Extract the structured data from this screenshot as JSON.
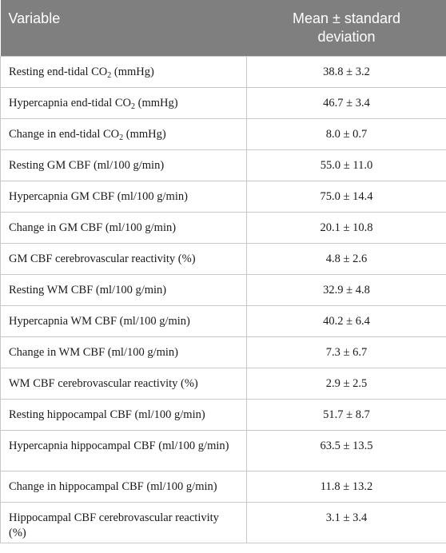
{
  "header": {
    "variable_label": "Variable",
    "stat_label": "Mean ± standard deviation"
  },
  "rows": [
    {
      "pre": "Resting end-tidal CO",
      "sub": "2",
      "post": " (mmHg)",
      "value": "38.8 ± 3.2"
    },
    {
      "pre": "Hypercapnia end-tidal CO",
      "sub": "2",
      "post": " (mmHg)",
      "value": "46.7 ± 3.4"
    },
    {
      "pre": "Change in end-tidal CO",
      "sub": "2",
      "post": " (mmHg)",
      "value": "8.0 ± 0.7"
    },
    {
      "pre": "Resting GM CBF (ml/100 g/min)",
      "value": "55.0 ± 11.0"
    },
    {
      "pre": "Hypercapnia GM CBF (ml/100 g/min)",
      "value": "75.0 ± 14.4"
    },
    {
      "pre": "Change in GM CBF (ml/100 g/min)",
      "value": "20.1 ± 10.8"
    },
    {
      "pre": "GM CBF cerebrovascular reactivity (%)",
      "value": "4.8 ± 2.6"
    },
    {
      "pre": "Resting WM CBF (ml/100 g/min)",
      "value": "32.9 ± 4.8"
    },
    {
      "pre": "Hypercapnia WM CBF (ml/100 g/min)",
      "value": "40.2 ± 6.4"
    },
    {
      "pre": "Change in WM CBF (ml/100 g/min)",
      "value": "7.3 ± 6.7"
    },
    {
      "pre": "WM CBF cerebrovascular reactivity (%)",
      "value": "2.9 ± 2.5"
    },
    {
      "pre": "Resting hippocampal CBF (ml/100 g/min)",
      "value": "51.7 ± 8.7"
    },
    {
      "pre": "Hypercapnia hippocampal CBF (ml/​100 g/min)",
      "value": "63.5 ± 13.5"
    },
    {
      "pre": "Change in hippocampal CBF (ml/100 g/min)",
      "value": "11.8 ± 13.2"
    },
    {
      "pre": "Hippocampal CBF cerebrovascular reactivity (%)",
      "value": "3.1 ± 3.4"
    }
  ]
}
